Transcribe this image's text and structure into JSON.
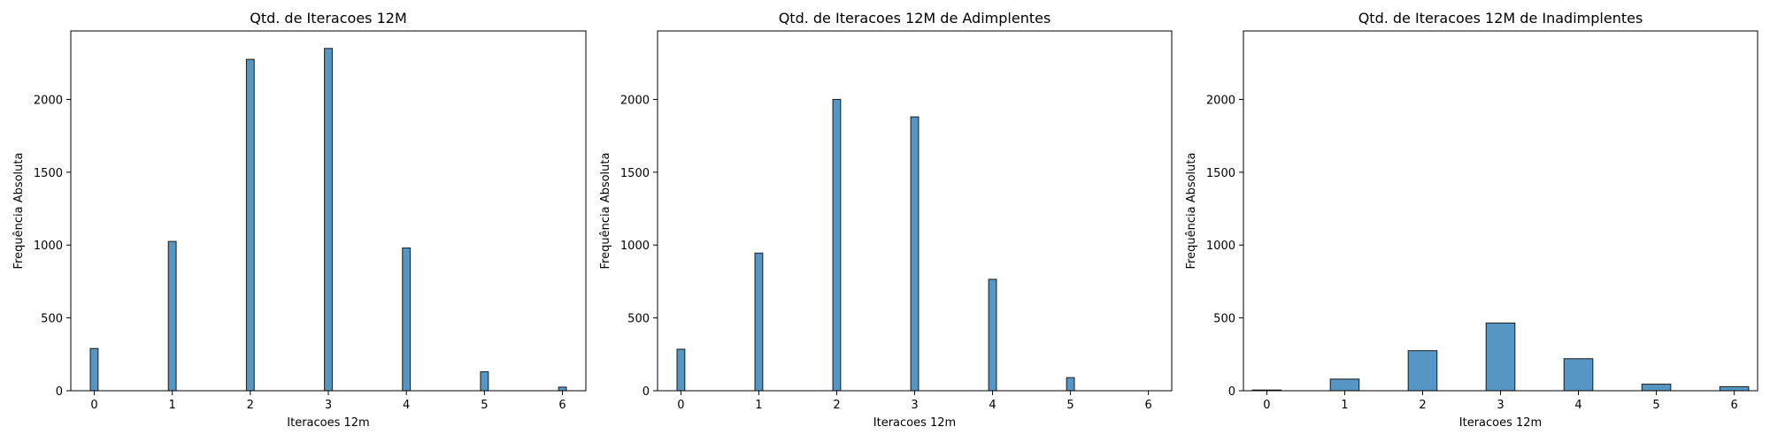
{
  "chart_data": [
    {
      "type": "bar",
      "title": "Qtd. de Iteracoes 12M",
      "xlabel": "Iteracoes 12m",
      "ylabel": "Frequência Absoluta",
      "categories": [
        "0",
        "1",
        "2",
        "3",
        "4",
        "5",
        "6"
      ],
      "values": [
        290,
        1025,
        2275,
        2350,
        980,
        130,
        25
      ],
      "xlim": [
        -0.3,
        6.3
      ],
      "ylim": [
        0,
        2470
      ],
      "xticks": [
        "0",
        "1",
        "2",
        "3",
        "4",
        "5",
        "6"
      ],
      "yticks": [
        "0",
        "500",
        "1000",
        "1500",
        "2000"
      ],
      "bar_width": 0.1,
      "color": "#5596c4"
    },
    {
      "type": "bar",
      "title": "Qtd. de Iteracoes 12M de Adimplentes",
      "xlabel": "Iteracoes 12m",
      "ylabel": "Frequência Absoluta",
      "categories": [
        "0",
        "1",
        "2",
        "3",
        "4",
        "5",
        "6"
      ],
      "values": [
        285,
        945,
        2000,
        1880,
        765,
        90,
        0
      ],
      "xlim": [
        -0.3,
        6.3
      ],
      "ylim": [
        0,
        2470
      ],
      "xticks": [
        "0",
        "1",
        "2",
        "3",
        "4",
        "5",
        "6"
      ],
      "yticks": [
        "0",
        "500",
        "1000",
        "1500",
        "2000"
      ],
      "bar_width": 0.1,
      "color": "#5596c4"
    },
    {
      "type": "bar",
      "title": "Qtd. de Iteracoes 12M de Inadimplentes",
      "xlabel": "Iteracoes 12m",
      "ylabel": "Frequência Absoluta",
      "categories": [
        "0",
        "1",
        "2",
        "3",
        "4",
        "5",
        "6"
      ],
      "values": [
        5,
        80,
        275,
        465,
        220,
        45,
        28
      ],
      "xlim": [
        -0.3,
        6.3
      ],
      "ylim": [
        0,
        2470
      ],
      "xticks": [
        "0",
        "1",
        "2",
        "3",
        "4",
        "5",
        "6"
      ],
      "yticks": [
        "0",
        "500",
        "1000",
        "1500",
        "2000"
      ],
      "bar_width": 0.37,
      "color": "#5596c4"
    }
  ]
}
